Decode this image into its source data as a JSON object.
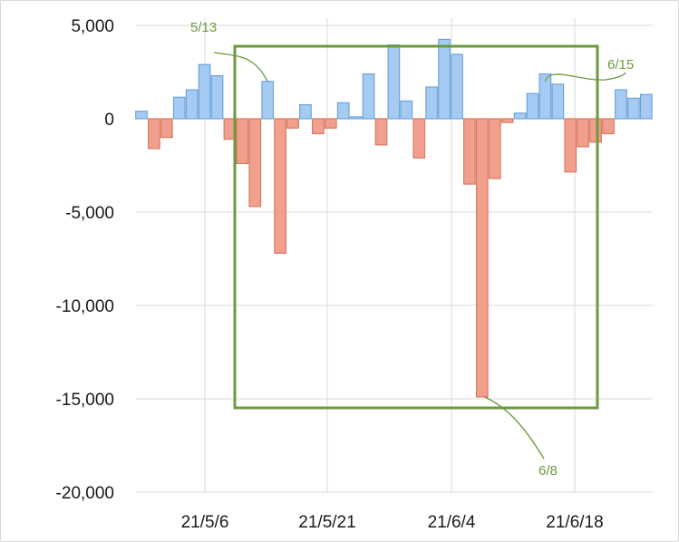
{
  "chart_data": {
    "type": "bar",
    "x_tick_labels": [
      "21/5/6",
      "21/5/21",
      "21/6/4",
      "21/6/18"
    ],
    "y_tick_labels": [
      "5,000",
      "0",
      "-5,000",
      "-10,000",
      "-15,000",
      "-20,000"
    ],
    "ylim": [
      -20000,
      5000
    ],
    "grid": true,
    "colors": {
      "positive_fill": "#a6cbf2",
      "positive_stroke": "#6fa3d9",
      "negative_fill": "#f0a08c",
      "negative_stroke": "#d97a63",
      "highlight": "#6b9a3e"
    },
    "values": [
      400,
      -1600,
      -1000,
      1150,
      1550,
      2900,
      2300,
      -1100,
      -2400,
      -4700,
      2000,
      -7200,
      -500,
      750,
      -800,
      -500,
      850,
      100,
      2400,
      -1400,
      3950,
      950,
      -2100,
      1700,
      4250,
      3450,
      -3500,
      -14900,
      -3200,
      -200,
      300,
      1350,
      2400,
      1850,
      -2850,
      -1500,
      -1250,
      -800,
      1550,
      1100,
      1300
    ],
    "annotations": [
      {
        "label": "5/13",
        "bar_index": 10
      },
      {
        "label": "6/15",
        "bar_index": 32
      },
      {
        "label": "6/8",
        "bar_index": 27
      }
    ]
  }
}
